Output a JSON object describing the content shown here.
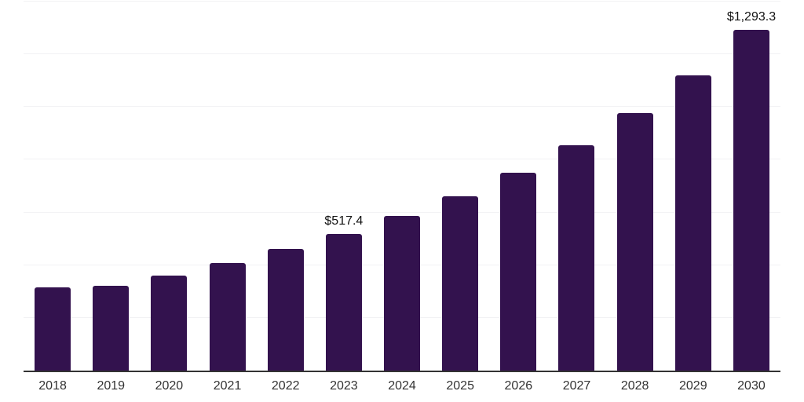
{
  "chart_data": {
    "type": "bar",
    "title": "",
    "categories": [
      "2018",
      "2019",
      "2020",
      "2021",
      "2022",
      "2023",
      "2024",
      "2025",
      "2026",
      "2027",
      "2028",
      "2029",
      "2030"
    ],
    "values": [
      317,
      323,
      361,
      407,
      462,
      517.4,
      588,
      660,
      752,
      856,
      977,
      1119,
      1293.3
    ],
    "bar_labels": [
      "",
      "",
      "",
      "",
      "",
      "$517.4",
      "",
      "",
      "",
      "",
      "",
      "",
      "$1,293.3"
    ],
    "labeled_points": [
      {
        "category": "2023",
        "label": "$517.4"
      },
      {
        "category": "2030",
        "label": "$1,293.3"
      }
    ],
    "xlabel": "",
    "ylabel": "",
    "ylim": [
      0,
      1400
    ],
    "grid_step": 200,
    "grid": "horizontal",
    "legend_position": "none",
    "colors": {
      "bar": "#33124E",
      "grid_line": "#f2f2f4",
      "axis_line": "#333333",
      "tick_label": "#333333",
      "data_label": "#111111",
      "background": "#ffffff"
    }
  }
}
